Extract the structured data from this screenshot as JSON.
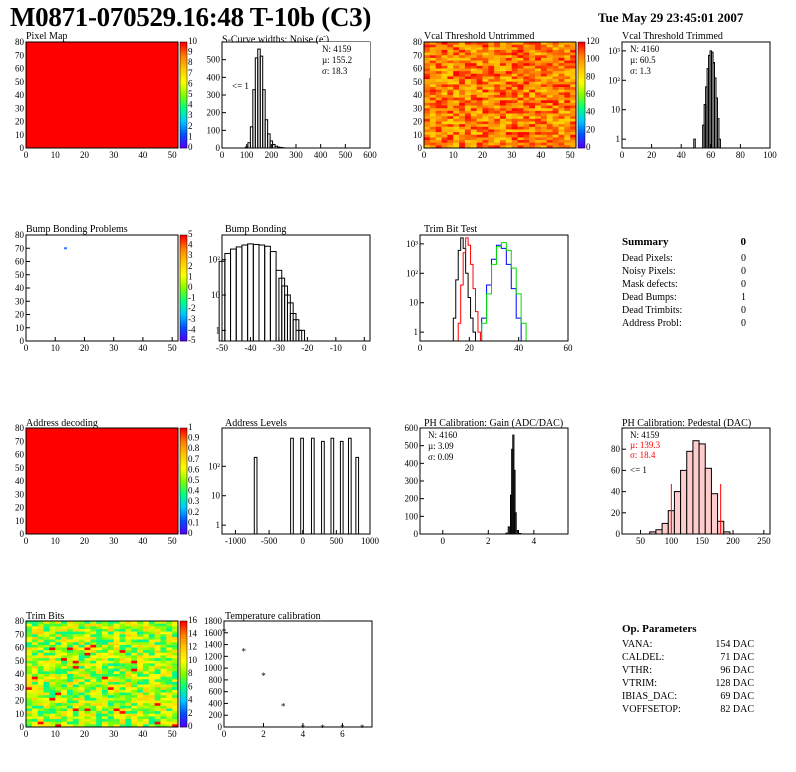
{
  "header": {
    "title": "M0871-070529.16:48 T-10b (C3)",
    "date": "Tue May 29 23:45:01 2007"
  },
  "colors": {
    "red": "#ff0000",
    "palette": [
      "#5000ff",
      "#0050ff",
      "#00c8ff",
      "#00ff80",
      "#80ff00",
      "#ffff00",
      "#ffc800",
      "#ff8000",
      "#ff0000"
    ]
  },
  "panels": {
    "pixel_map": {
      "title": "Pixel Map"
    },
    "scurve": {
      "title": "S-Curve widths: Noise (e",
      "title_sup": "-",
      "title_end": ")",
      "stats": [
        "N: 4159",
        "µ: 155.2",
        "σ: 18.3"
      ],
      "underflow": "<= 1"
    },
    "vcal_untrimmed": {
      "title": "Vcal Threshold Untrimmed"
    },
    "vcal_trimmed": {
      "title": "Vcal Threshold Trimmed",
      "stats": [
        "N: 4160",
        "µ: 60.5",
        "σ:  1.3"
      ]
    },
    "bump_problems": {
      "title": "Bump Bonding Problems"
    },
    "bump_bonding": {
      "title": "Bump Bonding"
    },
    "trim_bit_test": {
      "title": "Trim Bit Test"
    },
    "address_decoding": {
      "title": "Address decoding"
    },
    "address_levels": {
      "title": "Address Levels"
    },
    "ph_gain": {
      "title": "PH Calibration: Gain (ADC/DAC)",
      "stats": [
        "N: 4160",
        "µ: 3.09",
        "σ: 0.09"
      ]
    },
    "ph_pedestal": {
      "title": "PH Calibration: Pedestal (DAC)",
      "stats": [
        "N: 4159",
        "µ: 139.3",
        "σ: 18.4"
      ],
      "underflow": "<= 1"
    },
    "trim_bits": {
      "title": "Trim Bits"
    },
    "temperature": {
      "title": "Temperature calibration"
    }
  },
  "summary": {
    "title": "Summary",
    "total": "0",
    "rows": [
      {
        "label": "Dead Pixels:",
        "value": "0"
      },
      {
        "label": "Noisy Pixels:",
        "value": "0"
      },
      {
        "label": "Mask defects:",
        "value": "0"
      },
      {
        "label": "Dead Bumps:",
        "value": "1"
      },
      {
        "label": "Dead Trimbits:",
        "value": "0"
      },
      {
        "label": "Address Probl:",
        "value": "0"
      }
    ]
  },
  "op_params": {
    "title": "Op. Parameters",
    "rows": [
      {
        "label": "VANA:",
        "value": "154 DAC"
      },
      {
        "label": "CALDEL:",
        "value": "71 DAC"
      },
      {
        "label": "VTHR:",
        "value": "96 DAC"
      },
      {
        "label": "VTRIM:",
        "value": "128 DAC"
      },
      {
        "label": "IBIAS_DAC:",
        "value": "69 DAC"
      },
      {
        "label": "VOFFSETOP:",
        "value": "82 DAC"
      }
    ]
  },
  "chart_data": [
    {
      "id": "pixel_map",
      "type": "heatmap",
      "title": "Pixel Map",
      "xlim": [
        0,
        52
      ],
      "ylim": [
        0,
        80
      ],
      "xticks": [
        0,
        10,
        20,
        30,
        40,
        50
      ],
      "yticks": [
        0,
        10,
        20,
        30,
        40,
        50,
        60,
        70,
        80
      ],
      "fill": "uniform-max",
      "zticks": [
        "0",
        "1",
        "2",
        "3",
        "4",
        "5",
        "6",
        "7",
        "8",
        "9",
        "10"
      ]
    },
    {
      "id": "scurve",
      "type": "bar",
      "title": "S-Curve widths: Noise (e-)",
      "xlim": [
        0,
        600
      ],
      "ylim": [
        0,
        600
      ],
      "xticks": [
        0,
        100,
        200,
        300,
        400,
        500,
        600
      ],
      "yticks": [
        0,
        100,
        200,
        300,
        400,
        500
      ],
      "x": [
        100,
        110,
        120,
        130,
        140,
        150,
        160,
        170,
        180,
        190,
        200,
        210,
        220,
        230,
        240,
        250
      ],
      "values": [
        5,
        30,
        120,
        330,
        510,
        560,
        520,
        330,
        160,
        80,
        40,
        20,
        10,
        5,
        3,
        1
      ]
    },
    {
      "id": "vcal_untrimmed",
      "type": "heatmap",
      "title": "Vcal Threshold Untrimmed",
      "xlim": [
        0,
        52
      ],
      "ylim": [
        0,
        80
      ],
      "xticks": [
        0,
        10,
        20,
        30,
        40,
        50
      ],
      "yticks": [
        0,
        10,
        20,
        30,
        40,
        50,
        60,
        70,
        80
      ],
      "fill": "noise-warm",
      "zticks": [
        "0",
        "20",
        "40",
        "60",
        "80",
        "100",
        "120"
      ]
    },
    {
      "id": "vcal_trimmed",
      "type": "bar",
      "title": "Vcal Threshold Trimmed",
      "log": true,
      "xlim": [
        0,
        100
      ],
      "ylim": [
        0.5,
        2000
      ],
      "xticks": [
        0,
        20,
        40,
        60,
        80,
        100
      ],
      "yticks": [
        1,
        10,
        100,
        1000
      ],
      "ytick_labels": [
        "1",
        "10",
        "10²",
        "10³"
      ],
      "x": [
        49,
        55,
        56,
        57,
        58,
        59,
        60,
        61,
        62,
        63,
        64,
        65,
        66
      ],
      "values": [
        1,
        3,
        15,
        60,
        250,
        700,
        1000,
        900,
        400,
        120,
        25,
        5,
        1
      ]
    },
    {
      "id": "bump_problems",
      "type": "heatmap",
      "title": "Bump Bonding Problems",
      "xlim": [
        0,
        52
      ],
      "ylim": [
        0,
        80
      ],
      "xticks": [
        0,
        10,
        20,
        30,
        40,
        50
      ],
      "yticks": [
        0,
        10,
        20,
        30,
        40,
        50,
        60,
        70,
        80
      ],
      "fill": "single-pixel",
      "pixel": [
        13,
        70
      ],
      "zticks": [
        "-5",
        "-4",
        "-3",
        "-2",
        "-1",
        "0",
        "1",
        "2",
        "3",
        "4",
        "5"
      ]
    },
    {
      "id": "bump_bonding",
      "type": "bar",
      "title": "Bump Bonding",
      "log": true,
      "xlim": [
        -50,
        2
      ],
      "ylim": [
        0.5,
        500
      ],
      "xticks": [
        -50,
        -40,
        -30,
        -20,
        -10,
        0
      ],
      "yticks": [
        1,
        10,
        100
      ],
      "ytick_labels": [
        "1",
        "10",
        "10²"
      ],
      "x": [
        -50,
        -48,
        -46,
        -44,
        -42,
        -40,
        -38,
        -36,
        -34,
        -32,
        -30,
        -29,
        -28,
        -27,
        -26,
        -25,
        -24,
        -23,
        -22
      ],
      "values": [
        90,
        150,
        200,
        230,
        260,
        280,
        270,
        260,
        240,
        170,
        50,
        30,
        18,
        10,
        6,
        3,
        2,
        1,
        1
      ]
    },
    {
      "id": "trim_bit_test",
      "type": "line",
      "title": "Trim Bit Test",
      "log": true,
      "xlim": [
        0,
        60
      ],
      "ylim": [
        0.5,
        2000
      ],
      "xticks": [
        0,
        20,
        40,
        60
      ],
      "yticks": [
        1,
        10,
        100,
        1000
      ],
      "ytick_labels": [
        "1",
        "10",
        "10²",
        "10³"
      ],
      "series": [
        {
          "color": "#000000",
          "x": [
            14,
            15,
            16,
            17,
            18,
            19,
            20,
            21,
            22
          ],
          "values": [
            3,
            60,
            600,
            1600,
            700,
            100,
            15,
            3,
            1
          ]
        },
        {
          "color": "#ff0000",
          "x": [
            16,
            17,
            18,
            19,
            20,
            21,
            22,
            23,
            24
          ],
          "values": [
            2,
            40,
            500,
            1600,
            900,
            200,
            30,
            5,
            1
          ]
        },
        {
          "color": "#0000ff",
          "x": [
            26,
            28,
            30,
            32,
            34,
            36,
            38,
            40
          ],
          "values": [
            3,
            40,
            300,
            900,
            700,
            200,
            30,
            3
          ]
        },
        {
          "color": "#00dd00",
          "x": [
            26,
            28,
            30,
            32,
            34,
            36,
            38,
            40,
            42
          ],
          "values": [
            2,
            20,
            200,
            800,
            1100,
            600,
            150,
            20,
            2
          ]
        }
      ]
    },
    {
      "id": "address_decoding",
      "type": "heatmap",
      "title": "Address decoding",
      "xlim": [
        0,
        52
      ],
      "ylim": [
        0,
        80
      ],
      "xticks": [
        0,
        10,
        20,
        30,
        40,
        50
      ],
      "yticks": [
        0,
        10,
        20,
        30,
        40,
        50,
        60,
        70,
        80
      ],
      "fill": "uniform-max",
      "zticks": [
        "0",
        "0.1",
        "0.2",
        "0.3",
        "0.4",
        "0.5",
        "0.6",
        "0.7",
        "0.8",
        "0.9",
        "1"
      ]
    },
    {
      "id": "address_levels",
      "type": "bar",
      "title": "Address Levels",
      "log": true,
      "xlim": [
        -1200,
        1000
      ],
      "ylim": [
        0.5,
        2000
      ],
      "xticks": [
        -1000,
        -500,
        0,
        500,
        1000
      ],
      "yticks": [
        1,
        10,
        100
      ],
      "ytick_labels": [
        "1",
        "10",
        "10²"
      ],
      "x": [
        -700,
        -160,
        -10,
        150,
        300,
        440,
        580,
        700,
        810
      ],
      "values": [
        200,
        900,
        900,
        900,
        700,
        900,
        700,
        900,
        200
      ]
    },
    {
      "id": "ph_gain",
      "type": "bar",
      "title": "PH Calibration: Gain (ADC/DAC)",
      "xlim": [
        -1,
        5.5
      ],
      "ylim": [
        0,
        600
      ],
      "xticks": [
        0,
        2,
        4
      ],
      "yticks": [
        0,
        100,
        200,
        300,
        400,
        500,
        600
      ],
      "x": [
        2.8,
        2.9,
        3.0,
        3.05,
        3.1,
        3.15,
        3.2,
        3.3,
        3.4
      ],
      "values": [
        5,
        40,
        220,
        480,
        560,
        360,
        120,
        20,
        3
      ]
    },
    {
      "id": "ph_pedestal",
      "type": "bar",
      "title": "PH Calibration: Pedestal (DAC)",
      "xlim": [
        20,
        260
      ],
      "ylim": [
        0,
        100
      ],
      "xticks": [
        50,
        100,
        150,
        200,
        250
      ],
      "yticks": [
        0,
        20,
        40,
        60,
        80
      ],
      "x": [
        70,
        80,
        90,
        100,
        110,
        120,
        130,
        140,
        150,
        160,
        170,
        180,
        190
      ],
      "values": [
        2,
        4,
        10,
        22,
        40,
        60,
        78,
        88,
        85,
        62,
        38,
        12,
        2
      ]
    },
    {
      "id": "trim_bits",
      "type": "heatmap",
      "title": "Trim Bits",
      "xlim": [
        0,
        52
      ],
      "ylim": [
        0,
        80
      ],
      "xticks": [
        0,
        10,
        20,
        30,
        40,
        50
      ],
      "yticks": [
        0,
        10,
        20,
        30,
        40,
        50,
        60,
        70,
        80
      ],
      "fill": "noise-green",
      "zticks": [
        "0",
        "2",
        "4",
        "6",
        "8",
        "10",
        "12",
        "14",
        "16"
      ]
    },
    {
      "id": "temperature",
      "type": "scatter",
      "title": "Temperature calibration",
      "xlim": [
        0,
        7.5
      ],
      "ylim": [
        0,
        1800
      ],
      "xticks": [
        0,
        2,
        4,
        6
      ],
      "yticks": [
        0,
        200,
        400,
        600,
        800,
        1000,
        1200,
        1400,
        1600,
        1800
      ],
      "x": [
        0,
        1,
        2,
        3,
        4,
        5,
        6,
        7
      ],
      "values": [
        1650,
        1320,
        900,
        380,
        20,
        20,
        20,
        20
      ]
    }
  ]
}
